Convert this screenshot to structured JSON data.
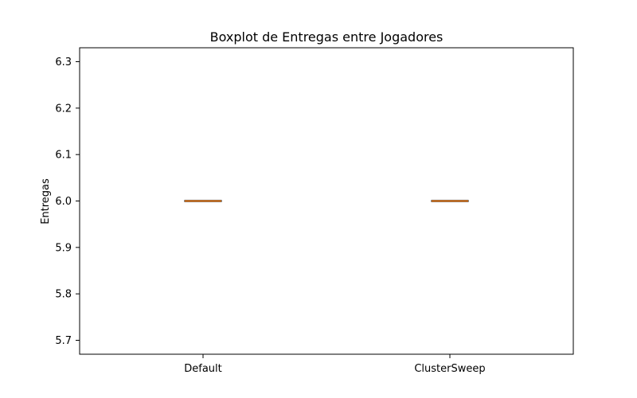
{
  "chart_data": {
    "type": "boxplot",
    "title": "Boxplot de Entregas entre Jogadores",
    "xlabel": "",
    "ylabel": "Entregas",
    "categories": [
      "Default",
      "ClusterSweep"
    ],
    "boxes": [
      {
        "category": "Default",
        "min": 6.0,
        "q1": 6.0,
        "median": 6.0,
        "q3": 6.0,
        "max": 6.0
      },
      {
        "category": "ClusterSweep",
        "min": 6.0,
        "q1": 6.0,
        "median": 6.0,
        "q3": 6.0,
        "max": 6.0
      }
    ],
    "ylim": [
      5.67,
      6.33
    ],
    "yticks": [
      5.7,
      5.8,
      5.9,
      6.0,
      6.1,
      6.2,
      6.3
    ],
    "ytick_labels": [
      "5.7",
      "5.8",
      "5.9",
      "6.0",
      "6.1",
      "6.2",
      "6.3"
    ],
    "grid": false,
    "colors": {
      "box": "#000000",
      "median": "#ff7f0e",
      "axis": "#000000"
    }
  }
}
